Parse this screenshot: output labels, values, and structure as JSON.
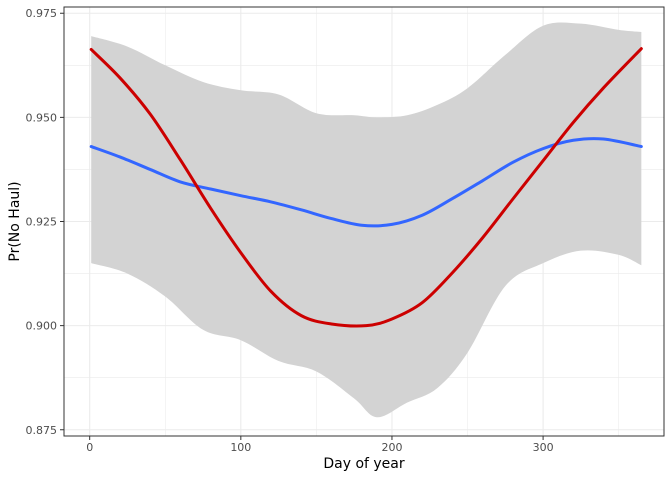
{
  "chart_data": {
    "type": "line",
    "xlabel": "Day of year",
    "ylabel": "Pr(No Haul)",
    "xlim": [
      -17,
      380
    ],
    "ylim": [
      0.8735,
      0.9765
    ],
    "x_ticks": [
      0,
      100,
      200,
      300
    ],
    "y_ticks": [
      0.875,
      0.9,
      0.925,
      0.95,
      0.975
    ],
    "grid": true,
    "legend": "none",
    "series": [
      {
        "kind": "line",
        "color": "#3366ff",
        "x": [
          1,
          20,
          40,
          60,
          80,
          100,
          120,
          140,
          160,
          180,
          200,
          220,
          240,
          260,
          280,
          300,
          320,
          340,
          365
        ],
        "y": [
          0.943,
          0.9405,
          0.9375,
          0.9345,
          0.9328,
          0.9312,
          0.9297,
          0.9278,
          0.9257,
          0.9241,
          0.9243,
          0.9265,
          0.9305,
          0.9348,
          0.9392,
          0.9425,
          0.9445,
          0.9448,
          0.943
        ]
      },
      {
        "kind": "line",
        "color": "#cc0000",
        "x": [
          1,
          20,
          40,
          60,
          80,
          100,
          120,
          140,
          160,
          183,
          200,
          220,
          240,
          260,
          280,
          300,
          320,
          340,
          365
        ],
        "y": [
          0.9663,
          0.9595,
          0.9508,
          0.9398,
          0.9282,
          0.9175,
          0.9082,
          0.9024,
          0.9004,
          0.9,
          0.9016,
          0.9055,
          0.9127,
          0.9211,
          0.9304,
          0.9396,
          0.9488,
          0.9571,
          0.9665
        ]
      }
    ],
    "ribbon": {
      "color": "#d3d3d3",
      "x": [
        1,
        25,
        50,
        75,
        100,
        125,
        150,
        175,
        190,
        210,
        230,
        250,
        275,
        300,
        325,
        350,
        365
      ],
      "upper": [
        0.9695,
        0.967,
        0.9625,
        0.9585,
        0.9565,
        0.9555,
        0.951,
        0.9505,
        0.95,
        0.9505,
        0.953,
        0.957,
        0.965,
        0.972,
        0.9725,
        0.971,
        0.9705
      ],
      "lower": [
        0.915,
        0.9125,
        0.907,
        0.899,
        0.8965,
        0.8915,
        0.889,
        0.8825,
        0.878,
        0.8815,
        0.885,
        0.8935,
        0.9095,
        0.915,
        0.918,
        0.917,
        0.9145
      ]
    }
  }
}
